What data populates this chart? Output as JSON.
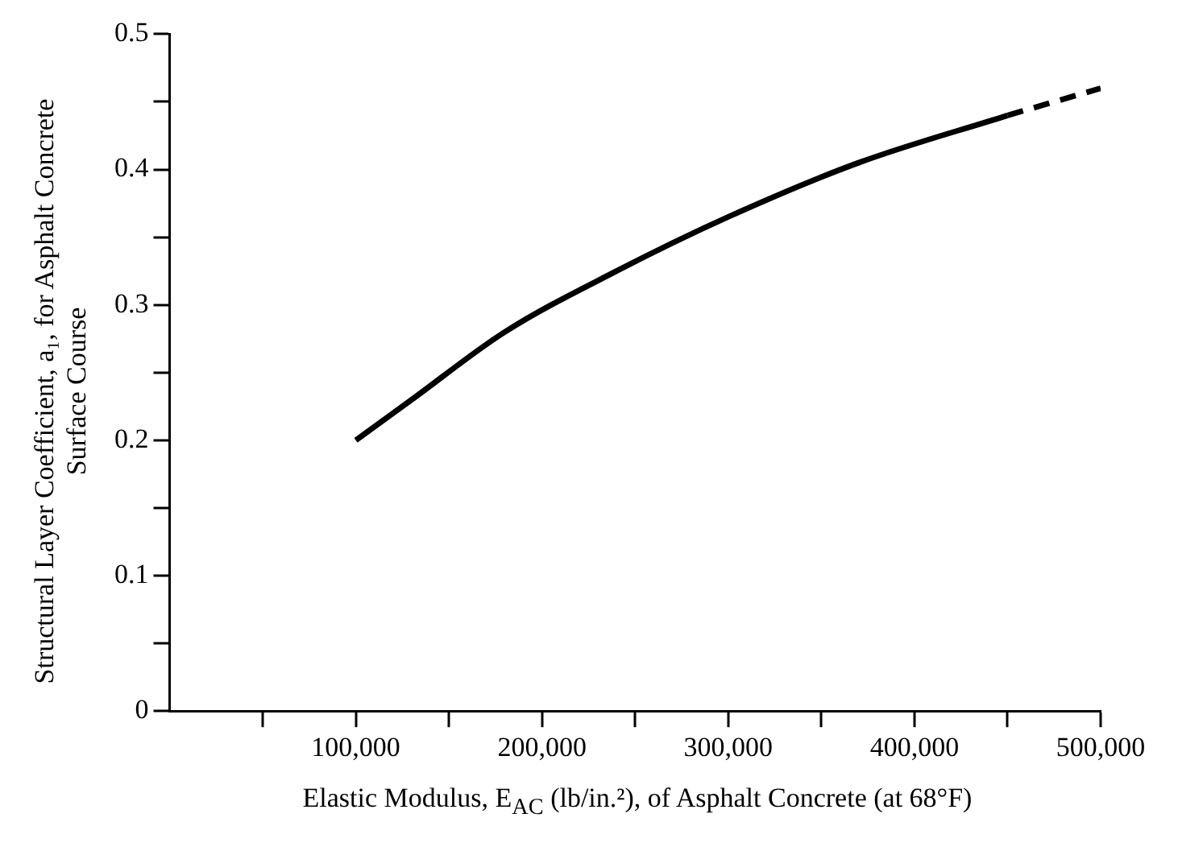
{
  "chart_data": {
    "type": "line",
    "xlabel": "Elastic Modulus, E$_{AC}$ (lb/in.²), of Asphalt Concrete (at 68°F)",
    "ylabel": "Structural Layer Coefficient, a₁, for Asphalt Concrete Surface Course",
    "xlim": [
      0,
      500000
    ],
    "xticks": [
      {
        "value": 50000,
        "label": null
      },
      {
        "value": 100000,
        "label": "100,000"
      },
      {
        "value": 150000,
        "label": null
      },
      {
        "value": 200000,
        "label": "200,000"
      },
      {
        "value": 250000,
        "label": null
      },
      {
        "value": 300000,
        "label": "300,000"
      },
      {
        "value": 350000,
        "label": null
      },
      {
        "value": 400000,
        "label": "400,000"
      },
      {
        "value": 450000,
        "label": null
      },
      {
        "value": 500000,
        "label": "500,000"
      }
    ],
    "ylim": [
      0,
      0.5
    ],
    "yticks": [
      0,
      {
        "value": 0.05,
        "label": null
      },
      0.1,
      {
        "value": 0.15,
        "label": null
      },
      0.2,
      {
        "value": 0.25,
        "label": null
      },
      0.3,
      {
        "value": 0.35,
        "label": null
      },
      0.4,
      {
        "value": 0.45,
        "label": null
      },
      0.5
    ],
    "legend": false,
    "marker": "none",
    "series": [
      {
        "color": "#000000",
        "line_style": "solid",
        "x": [
          100000,
          130000,
          180000,
          240000,
          300000,
          370000,
          450000
        ],
        "values": [
          0.2,
          0.23,
          0.28,
          0.325,
          0.365,
          0.405,
          0.44
        ]
      },
      {
        "color": "#000000",
        "line_style": "dashed",
        "x": [
          450000,
          500000
        ],
        "values": [
          0.44,
          0.46
        ]
      }
    ]
  }
}
